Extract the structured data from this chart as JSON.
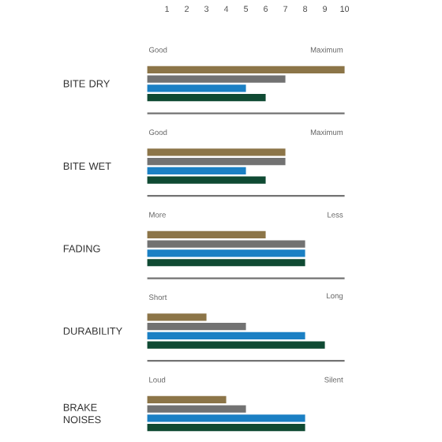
{
  "chart_data": {
    "type": "bar",
    "orientation": "horizontal",
    "categories": [
      "BITE DRY",
      "BITE WET",
      "FADING",
      "DURABILITY",
      "BRAKE NOISES"
    ],
    "series": [
      {
        "color": "#8c7548",
        "values": [
          10,
          7,
          6,
          3,
          4
        ]
      },
      {
        "color": "#727272",
        "values": [
          7,
          7,
          8,
          5,
          5
        ]
      },
      {
        "color": "#1b80c4",
        "values": [
          5,
          5,
          8,
          8,
          8
        ]
      },
      {
        "color": "#0f4a33",
        "values": [
          6,
          6,
          8,
          9,
          8
        ]
      }
    ],
    "annotations": [
      "Good",
      "Maximum",
      "Good",
      "Maximum",
      "More",
      "Less",
      "Short",
      "Long",
      "Loud",
      "Silent"
    ],
    "xlim": [
      0,
      10
    ],
    "xticks": [
      1,
      2,
      3,
      4,
      5,
      6,
      7,
      8,
      9,
      10
    ]
  }
}
